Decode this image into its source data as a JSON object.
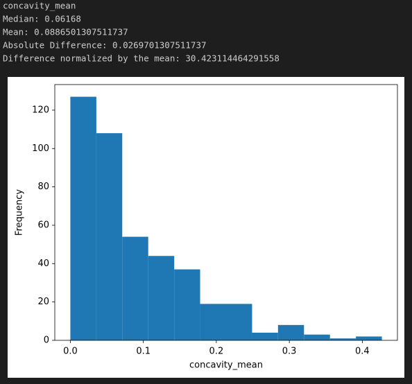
{
  "output_text": [
    "concavity_mean",
    "Median: 0.06168",
    "Mean: 0.0886501307511737",
    "Absolute Difference: 0.0269701307511737",
    "Difference normalized by the mean: 30.423114464291558"
  ],
  "chart_data": {
    "type": "histogram",
    "xlabel": "concavity_mean",
    "ylabel": "Frequency",
    "color": "#1f77b4",
    "bins": [
      0,
      0.0356,
      0.0711,
      0.1067,
      0.1423,
      0.1778,
      0.2134,
      0.249,
      0.2845,
      0.3201,
      0.3557,
      0.3912,
      0.4268
    ],
    "values": [
      127,
      108,
      54,
      44,
      37,
      19,
      19,
      4,
      8,
      3,
      1,
      2
    ],
    "xlim": [
      -0.0213,
      0.4481
    ],
    "ylim": [
      0,
      133.35
    ],
    "xticks": [
      {
        "value": 0,
        "label": "0.0"
      },
      0.1,
      0.2,
      0.3,
      0.4
    ],
    "yticks": [
      0,
      20,
      40,
      60,
      80,
      100,
      120
    ]
  }
}
